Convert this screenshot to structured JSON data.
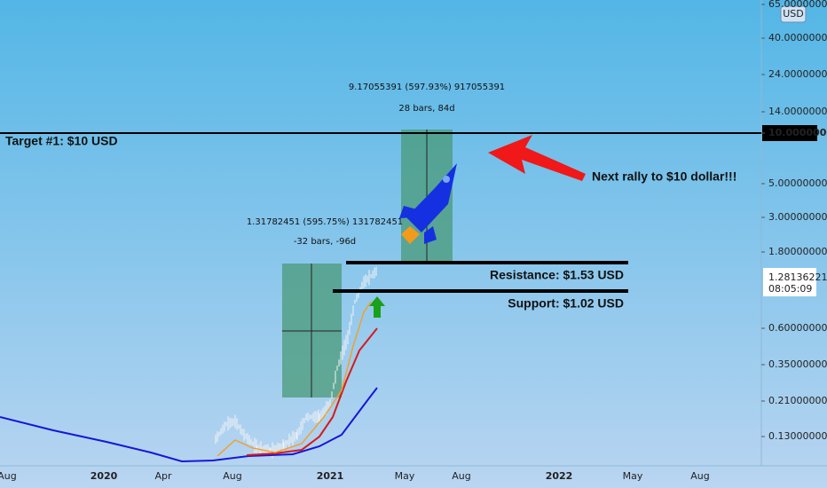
{
  "price_axis": {
    "currency": "USD",
    "ticks": [
      "65.00000000",
      "40.00000000",
      "24.00000000",
      "14.00000000",
      "10.00000000",
      "5.00000000",
      "3.00000000",
      "1.80000000",
      "0.60000000",
      "0.35000000",
      "0.21000000",
      "0.13000000"
    ],
    "current_price": "1.28136221",
    "countdown": "08:05:09"
  },
  "time_axis": {
    "labels": [
      "Aug",
      "2020",
      "Apr",
      "Aug",
      "2021",
      "May",
      "Aug",
      "2022",
      "May",
      "Aug"
    ]
  },
  "annotations": {
    "target": "Target #1: $10 USD",
    "rally": "Next rally to $10 dollar!!!",
    "resistance": "Resistance: $1.53 USD",
    "support": "Support: $1.02 USD"
  },
  "measure_1": {
    "change": "1.31782451 (595.75%) 131782451",
    "span": "-32 bars, -96d"
  },
  "measure_2": {
    "change": "9.17055391 (597.93%) 917055391",
    "span": "28 bars, 84d"
  }
}
